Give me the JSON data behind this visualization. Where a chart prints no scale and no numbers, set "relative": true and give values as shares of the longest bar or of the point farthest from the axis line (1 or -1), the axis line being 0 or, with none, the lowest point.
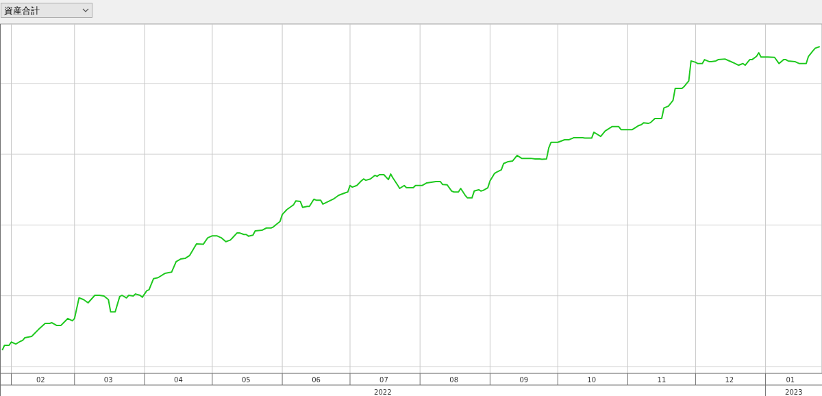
{
  "chart_data": {
    "type": "line",
    "title": "資産合計",
    "relative": true,
    "grid": true,
    "marker": "none",
    "line_style": "solid",
    "xlim": [
      "2022-01-27",
      "2023-01-26"
    ],
    "xticks": [
      {
        "value": "2022-02-01",
        "label": null
      },
      {
        "value": "2022-03-01",
        "label": null
      },
      {
        "value": "2022-04-01",
        "label": null
      },
      {
        "value": "2022-05-01",
        "label": null
      },
      {
        "value": "2022-06-01",
        "label": null
      },
      {
        "value": "2022-07-01",
        "label": null
      },
      {
        "value": "2022-08-01",
        "label": null
      },
      {
        "value": "2022-09-01",
        "label": null
      },
      {
        "value": "2022-10-01",
        "label": null
      },
      {
        "value": "2022-11-01",
        "label": null
      },
      {
        "value": "2022-12-01",
        "label": null
      },
      {
        "value": "2023-01-01",
        "label": null
      },
      {
        "value": "2022-02-14",
        "label": "02"
      },
      {
        "value": "2022-03-16",
        "label": "03"
      },
      {
        "value": "2022-04-16",
        "label": "04"
      },
      {
        "value": "2022-05-16",
        "label": "05"
      },
      {
        "value": "2022-06-16",
        "label": "06"
      },
      {
        "value": "2022-07-16",
        "label": "07"
      },
      {
        "value": "2022-08-16",
        "label": "08"
      },
      {
        "value": "2022-09-16",
        "label": "09"
      },
      {
        "value": "2022-10-16",
        "label": "10"
      },
      {
        "value": "2022-11-16",
        "label": "11"
      },
      {
        "value": "2022-12-16",
        "label": "12"
      },
      {
        "value": "2023-01-12",
        "label": "01"
      }
    ],
    "annotations": [
      "2022",
      "2023"
    ],
    "series": [
      {
        "color": "#1ec81e",
        "x": [
          "2022-01-28",
          "2022-01-29",
          "2022-01-31",
          "2022-02-01",
          "2022-02-03",
          "2022-02-05",
          "2022-02-06",
          "2022-02-07",
          "2022-02-10",
          "2022-02-11",
          "2022-02-13",
          "2022-02-16",
          "2022-02-18",
          "2022-02-19",
          "2022-02-21",
          "2022-02-23",
          "2022-02-25",
          "2022-02-26",
          "2022-02-28",
          "2022-03-01",
          "2022-03-03",
          "2022-03-05",
          "2022-03-07",
          "2022-03-10",
          "2022-03-12",
          "2022-03-14",
          "2022-03-16",
          "2022-03-17",
          "2022-03-19",
          "2022-03-21",
          "2022-03-22",
          "2022-03-24",
          "2022-03-25",
          "2022-03-27",
          "2022-03-28",
          "2022-03-30",
          "2022-03-31",
          "2022-04-02",
          "2022-04-03",
          "2022-04-05",
          "2022-04-07",
          "2022-04-10",
          "2022-04-13",
          "2022-04-15",
          "2022-04-17",
          "2022-04-19",
          "2022-04-21",
          "2022-04-24",
          "2022-04-27",
          "2022-04-29",
          "2022-05-01",
          "2022-05-03",
          "2022-05-05",
          "2022-05-07",
          "2022-05-09",
          "2022-05-10",
          "2022-05-12",
          "2022-05-13",
          "2022-05-15",
          "2022-05-16",
          "2022-05-17",
          "2022-05-19",
          "2022-05-20",
          "2022-05-23",
          "2022-05-25",
          "2022-05-27",
          "2022-05-28",
          "2022-05-31",
          "2022-06-01",
          "2022-06-03",
          "2022-06-05",
          "2022-06-06",
          "2022-06-07",
          "2022-06-09",
          "2022-06-10",
          "2022-06-12",
          "2022-06-13",
          "2022-06-15",
          "2022-06-16",
          "2022-06-18",
          "2022-06-19",
          "2022-06-22",
          "2022-06-24",
          "2022-06-26",
          "2022-06-29",
          "2022-06-30",
          "2022-07-01",
          "2022-07-02",
          "2022-07-04",
          "2022-07-06",
          "2022-07-07",
          "2022-07-08",
          "2022-07-10",
          "2022-07-12",
          "2022-07-13",
          "2022-07-14",
          "2022-07-16",
          "2022-07-18",
          "2022-07-19",
          "2022-07-20",
          "2022-07-22",
          "2022-07-23",
          "2022-07-25",
          "2022-07-26",
          "2022-07-29",
          "2022-07-30",
          "2022-08-02",
          "2022-08-04",
          "2022-08-06",
          "2022-08-08",
          "2022-08-10",
          "2022-08-11",
          "2022-08-13",
          "2022-08-15",
          "2022-08-16",
          "2022-08-18",
          "2022-08-19",
          "2022-08-21",
          "2022-08-22",
          "2022-08-24",
          "2022-08-25",
          "2022-08-27",
          "2022-08-28",
          "2022-08-29",
          "2022-08-31",
          "2022-09-01",
          "2022-09-03",
          "2022-09-04",
          "2022-09-06",
          "2022-09-07",
          "2022-09-09",
          "2022-09-11",
          "2022-09-13",
          "2022-09-15",
          "2022-09-18",
          "2022-09-19",
          "2022-09-21",
          "2022-09-23",
          "2022-09-24",
          "2022-09-26",
          "2022-09-27",
          "2022-09-28",
          "2022-10-01",
          "2022-10-04",
          "2022-10-06",
          "2022-10-08",
          "2022-10-12",
          "2022-10-13",
          "2022-10-16",
          "2022-10-17",
          "2022-10-20",
          "2022-10-22",
          "2022-10-25",
          "2022-10-28",
          "2022-10-29",
          "2022-11-03",
          "2022-11-06",
          "2022-11-07",
          "2022-11-08",
          "2022-11-10",
          "2022-11-11",
          "2022-11-13",
          "2022-11-16",
          "2022-11-17",
          "2022-11-19",
          "2022-11-21",
          "2022-11-22",
          "2022-11-25",
          "2022-11-26",
          "2022-11-28",
          "2022-11-29",
          "2022-12-01",
          "2022-12-02",
          "2022-12-04",
          "2022-12-05",
          "2022-12-07",
          "2022-12-08",
          "2022-12-10",
          "2022-12-11",
          "2022-12-14",
          "2022-12-16",
          "2022-12-18",
          "2022-12-20",
          "2022-12-22",
          "2022-12-23",
          "2022-12-25",
          "2022-12-26",
          "2022-12-28",
          "2022-12-29",
          "2022-12-30",
          "2023-01-02",
          "2023-01-05",
          "2023-01-07",
          "2023-01-09",
          "2023-01-10",
          "2023-01-11",
          "2023-01-14",
          "2023-01-16",
          "2023-01-19",
          "2023-01-20",
          "2023-01-22",
          "2023-01-23",
          "2023-01-25"
        ],
        "values": [
          0.071,
          0.086,
          0.086,
          0.096,
          0.09,
          0.098,
          0.101,
          0.109,
          0.113,
          0.12,
          0.134,
          0.153,
          0.153,
          0.155,
          0.147,
          0.147,
          0.161,
          0.168,
          0.161,
          0.168,
          0.231,
          0.226,
          0.216,
          0.239,
          0.239,
          0.237,
          0.226,
          0.188,
          0.188,
          0.235,
          0.239,
          0.231,
          0.239,
          0.237,
          0.243,
          0.239,
          0.233,
          0.253,
          0.256,
          0.29,
          0.293,
          0.306,
          0.31,
          0.342,
          0.35,
          0.352,
          0.361,
          0.396,
          0.395,
          0.415,
          0.421,
          0.421,
          0.415,
          0.403,
          0.408,
          0.415,
          0.43,
          0.43,
          0.425,
          0.425,
          0.42,
          0.423,
          0.436,
          0.438,
          0.445,
          0.445,
          0.448,
          0.465,
          0.486,
          0.501,
          0.511,
          0.516,
          0.528,
          0.526,
          0.508,
          0.511,
          0.511,
          0.533,
          0.53,
          0.53,
          0.518,
          0.528,
          0.535,
          0.545,
          0.553,
          0.555,
          0.575,
          0.57,
          0.575,
          0.589,
          0.595,
          0.591,
          0.595,
          0.606,
          0.603,
          0.608,
          0.608,
          0.593,
          0.61,
          0.598,
          0.577,
          0.566,
          0.575,
          0.568,
          0.568,
          0.575,
          0.575,
          0.583,
          0.585,
          0.587,
          0.587,
          0.578,
          0.577,
          0.558,
          0.555,
          0.555,
          0.566,
          0.545,
          0.537,
          0.537,
          0.558,
          0.562,
          0.558,
          0.56,
          0.568,
          0.589,
          0.612,
          0.616,
          0.623,
          0.642,
          0.648,
          0.65,
          0.667,
          0.658,
          0.658,
          0.658,
          0.656,
          0.656,
          0.655,
          0.656,
          0.69,
          0.707,
          0.707,
          0.715,
          0.715,
          0.721,
          0.721,
          0.72,
          0.72,
          0.738,
          0.725,
          0.742,
          0.755,
          0.755,
          0.746,
          0.746,
          0.759,
          0.761,
          0.767,
          0.765,
          0.767,
          0.78,
          0.78,
          0.812,
          0.818,
          0.835,
          0.872,
          0.872,
          0.878,
          0.895,
          0.956,
          0.952,
          0.948,
          0.948,
          0.96,
          0.954,
          0.954,
          0.956,
          0.96,
          0.962,
          0.956,
          0.95,
          0.943,
          0.948,
          0.943,
          0.96,
          0.96,
          0.97,
          0.981,
          0.968,
          0.968,
          0.967,
          0.948,
          0.96,
          0.96,
          0.956,
          0.954,
          0.948,
          0.948,
          0.97,
          0.987,
          0.995,
          1
        ]
      }
    ]
  }
}
